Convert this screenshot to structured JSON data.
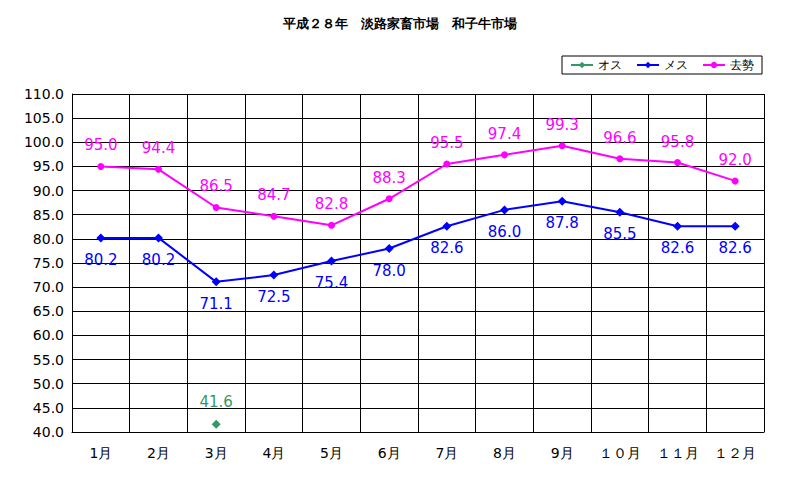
{
  "chart_data": {
    "type": "line",
    "title": "平成２８年　淡路家畜市場　和子牛市場",
    "categories": [
      "1月",
      "2月",
      "3月",
      "4月",
      "5月",
      "6月",
      "7月",
      "8月",
      "9月",
      "１０月",
      "１１月",
      "１２月"
    ],
    "series": [
      {
        "name": "オス",
        "color": "#339966",
        "marker": "diamond",
        "values": [
          null,
          null,
          41.6,
          null,
          null,
          null,
          null,
          null,
          null,
          null,
          null,
          null
        ],
        "value_labels": [
          null,
          null,
          "41.6",
          null,
          null,
          null,
          null,
          null,
          null,
          null,
          null,
          null
        ]
      },
      {
        "name": "メス",
        "color": "#0000ff",
        "marker": "diamond",
        "values": [
          80.2,
          80.2,
          71.1,
          72.5,
          75.4,
          78.0,
          82.6,
          86.0,
          87.8,
          85.5,
          82.6,
          82.6
        ],
        "value_labels": [
          "80.2",
          "80.2",
          "71.1",
          "72.5",
          "75.4",
          "78.0",
          "82.6",
          "86.0",
          "87.8",
          "85.5",
          "82.6",
          "82.6"
        ]
      },
      {
        "name": "去勢",
        "color": "#ff00ff",
        "marker": "circle",
        "values": [
          95.0,
          94.4,
          86.5,
          84.7,
          82.8,
          88.3,
          95.5,
          97.4,
          99.3,
          96.6,
          95.8,
          92.0
        ],
        "value_labels": [
          "95.0",
          "94.4",
          "86.5",
          "84.7",
          "82.8",
          "88.3",
          "95.5",
          "97.4",
          "99.3",
          "96.6",
          "95.8",
          "92.0"
        ]
      }
    ],
    "ylim": [
      40,
      110
    ],
    "yticks": [
      {
        "value": 40,
        "label": "40.0"
      },
      {
        "value": 45,
        "label": "45.0"
      },
      {
        "value": 50,
        "label": "50.0"
      },
      {
        "value": 55,
        "label": "55.0"
      },
      {
        "value": 60,
        "label": "60.0"
      },
      {
        "value": 65,
        "label": "65.0"
      },
      {
        "value": 70,
        "label": "70.0"
      },
      {
        "value": 75,
        "label": "75.0"
      },
      {
        "value": 80,
        "label": "80.0"
      },
      {
        "value": 85,
        "label": "85.0"
      },
      {
        "value": 90,
        "label": "90.0"
      },
      {
        "value": 95,
        "label": "95.0"
      },
      {
        "value": 100,
        "label": "100.0"
      },
      {
        "value": 105,
        "label": "105.0"
      },
      {
        "value": 110,
        "label": "110.0"
      }
    ],
    "grid": true,
    "legend": "top-right",
    "data_labels": true
  }
}
